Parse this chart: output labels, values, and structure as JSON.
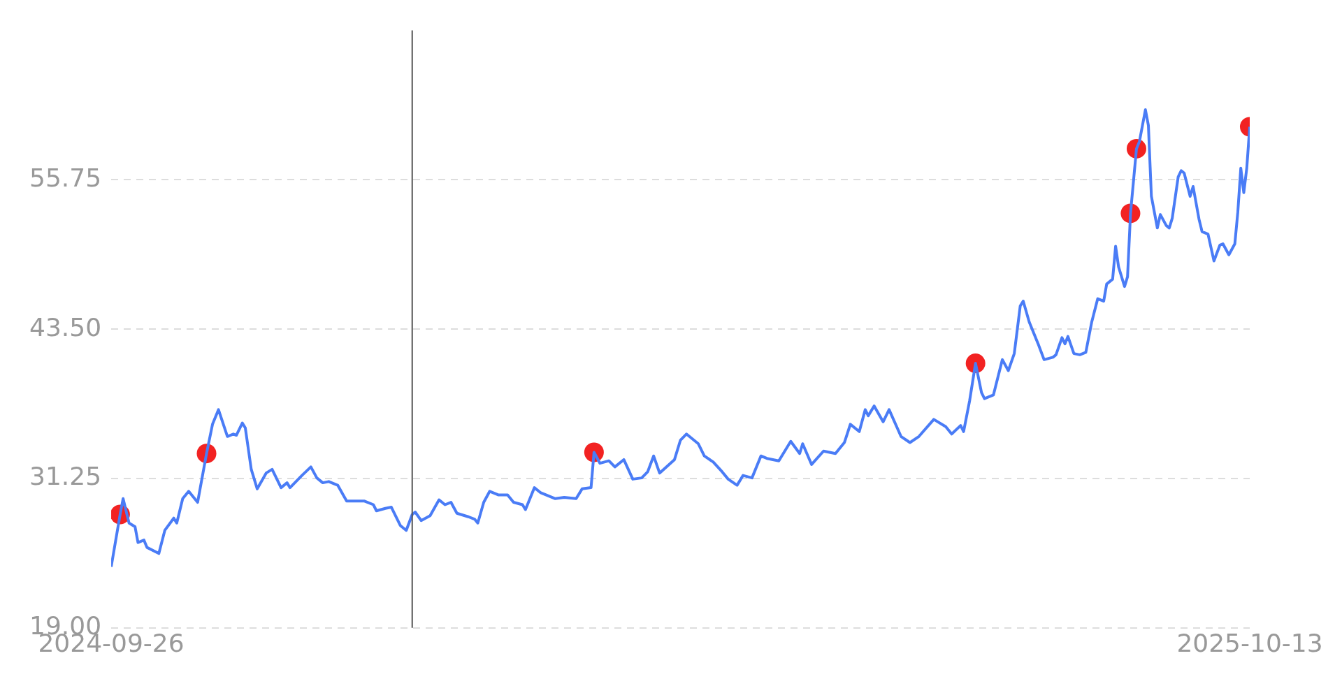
{
  "chart_data": {
    "type": "line",
    "xlim": [
      "2024-09-26",
      "2025-10-13"
    ],
    "xticks": [
      "2024-09-26",
      "2025-10-13"
    ],
    "ylim": [
      19,
      68
    ],
    "yticks": [
      {
        "value": 19,
        "label": "19.00"
      },
      31.25,
      {
        "value": 43.5,
        "label": "43.50"
      },
      55.75
    ],
    "grid": "y",
    "ref_lines": [
      {
        "axis": "x",
        "value": "2025-01-05",
        "color": "#555555"
      }
    ],
    "series": [
      {
        "color": "#4a7cf6",
        "marker": "none",
        "x": [
          "2024-09-26",
          "2024-09-29",
          "2024-09-30",
          "2024-10-02",
          "2024-10-04",
          "2024-10-05",
          "2024-10-07",
          "2024-10-08",
          "2024-10-12",
          "2024-10-14",
          "2024-10-17",
          "2024-10-18",
          "2024-10-20",
          "2024-10-22",
          "2024-10-25",
          "2024-10-28",
          "2024-10-30",
          "2024-11-01",
          "2024-11-04",
          "2024-11-06",
          "2024-11-07",
          "2024-11-09",
          "2024-11-10",
          "2024-11-12",
          "2024-11-14",
          "2024-11-17",
          "2024-11-19",
          "2024-11-22",
          "2024-11-24",
          "2024-11-25",
          "2024-11-29",
          "2024-12-02",
          "2024-12-04",
          "2024-12-06",
          "2024-12-08",
          "2024-12-11",
          "2024-12-14",
          "2024-12-20",
          "2024-12-23",
          "2024-12-24",
          "2024-12-27",
          "2024-12-29",
          "2025-01-01",
          "2025-01-03",
          "2025-01-05",
          "2025-01-06",
          "2025-01-08",
          "2025-01-11",
          "2025-01-14",
          "2025-01-16",
          "2025-01-18",
          "2025-01-20",
          "2025-01-24",
          "2025-01-26",
          "2025-01-27",
          "2025-01-29",
          "2025-01-31",
          "2025-02-03",
          "2025-02-06",
          "2025-02-08",
          "2025-02-11",
          "2025-02-12",
          "2025-02-15",
          "2025-02-17",
          "2025-02-22",
          "2025-02-25",
          "2025-03-01",
          "2025-03-03",
          "2025-03-06",
          "2025-03-07",
          "2025-03-09",
          "2025-03-12",
          "2025-03-14",
          "2025-03-17",
          "2025-03-20",
          "2025-03-23",
          "2025-03-25",
          "2025-03-27",
          "2025-03-29",
          "2025-04-03",
          "2025-04-05",
          "2025-04-07",
          "2025-04-11",
          "2025-04-13",
          "2025-04-16",
          "2025-04-19",
          "2025-04-21",
          "2025-04-24",
          "2025-04-26",
          "2025-04-29",
          "2025-05-02",
          "2025-05-04",
          "2025-05-08",
          "2025-05-12",
          "2025-05-15",
          "2025-05-16",
          "2025-05-19",
          "2025-05-23",
          "2025-05-27",
          "2025-05-30",
          "2025-06-01",
          "2025-06-04",
          "2025-06-06",
          "2025-06-07",
          "2025-06-09",
          "2025-06-12",
          "2025-06-14",
          "2025-06-18",
          "2025-06-21",
          "2025-06-24",
          "2025-06-29",
          "2025-07-03",
          "2025-07-05",
          "2025-07-08",
          "2025-07-09",
          "2025-07-11",
          "2025-07-13",
          "2025-07-15",
          "2025-07-16",
          "2025-07-19",
          "2025-07-22",
          "2025-07-24",
          "2025-07-26",
          "2025-07-28",
          "2025-07-29",
          "2025-07-31",
          "2025-08-03",
          "2025-08-05",
          "2025-08-08",
          "2025-08-09",
          "2025-08-11",
          "2025-08-12",
          "2025-08-13",
          "2025-08-15",
          "2025-08-17",
          "2025-08-19",
          "2025-08-21",
          "2025-08-23",
          "2025-08-25",
          "2025-08-26",
          "2025-08-28",
          "2025-08-29",
          "2025-08-30",
          "2025-09-01",
          "2025-09-02",
          "2025-09-03",
          "2025-09-05",
          "2025-09-06",
          "2025-09-08",
          "2025-09-09",
          "2025-09-10",
          "2025-09-12",
          "2025-09-13",
          "2025-09-15",
          "2025-09-16",
          "2025-09-17",
          "2025-09-19",
          "2025-09-20",
          "2025-09-21",
          "2025-09-23",
          "2025-09-24",
          "2025-09-26",
          "2025-09-27",
          "2025-09-29",
          "2025-10-01",
          "2025-10-03",
          "2025-10-04",
          "2025-10-06",
          "2025-10-08",
          "2025-10-09",
          "2025-10-10",
          "2025-10-11",
          "2025-10-12",
          "2025-10-13"
        ],
        "values": [
          24.0,
          28.3,
          29.6,
          27.6,
          27.3,
          26.0,
          26.2,
          25.6,
          25.1,
          27.0,
          28.0,
          27.6,
          29.6,
          30.2,
          29.3,
          33.3,
          35.7,
          36.9,
          34.7,
          34.9,
          34.8,
          35.8,
          35.4,
          32.0,
          30.4,
          31.7,
          32.0,
          30.5,
          30.9,
          30.5,
          31.5,
          32.2,
          31.3,
          30.9,
          31.0,
          30.7,
          29.4,
          29.4,
          29.1,
          28.6,
          28.8,
          28.9,
          27.4,
          27.0,
          28.3,
          28.5,
          27.8,
          28.2,
          29.5,
          29.1,
          29.3,
          28.4,
          28.1,
          27.9,
          27.6,
          29.3,
          30.2,
          29.9,
          29.9,
          29.3,
          29.1,
          28.7,
          30.5,
          30.1,
          29.6,
          29.7,
          29.6,
          30.4,
          30.5,
          33.4,
          32.5,
          32.7,
          32.2,
          32.8,
          31.2,
          31.3,
          31.8,
          33.1,
          31.7,
          32.8,
          34.4,
          34.9,
          34.1,
          33.1,
          32.6,
          31.8,
          31.2,
          30.7,
          31.5,
          31.3,
          33.1,
          32.9,
          32.7,
          34.3,
          33.3,
          34.1,
          32.4,
          33.5,
          33.3,
          34.2,
          35.7,
          35.1,
          36.9,
          36.4,
          37.2,
          35.9,
          36.9,
          34.7,
          34.2,
          34.7,
          36.1,
          35.5,
          34.9,
          35.6,
          35.1,
          37.6,
          40.7,
          38.3,
          37.8,
          38.1,
          41.0,
          40.1,
          41.5,
          45.4,
          45.8,
          44.1,
          42.3,
          41.0,
          41.2,
          41.4,
          42.8,
          42.3,
          42.9,
          41.5,
          41.4,
          41.6,
          44.1,
          46.0,
          45.8,
          47.2,
          47.6,
          50.3,
          48.6,
          47.0,
          47.8,
          53.0,
          58.3,
          58.9,
          61.5,
          60.2,
          54.4,
          51.8,
          52.9,
          52.0,
          51.8,
          52.6,
          56.0,
          56.5,
          56.3,
          54.4,
          55.2,
          52.5,
          51.5,
          51.3,
          49.1,
          50.4,
          50.5,
          49.6,
          50.5,
          53.1,
          56.7,
          54.7,
          56.7,
          60.1
        ]
      },
      {
        "type": "scatter",
        "color": "#f22222",
        "marker": "circle",
        "x": [
          "2024-09-29",
          "2024-10-28",
          "2025-03-07",
          "2025-07-13",
          "2025-09-03",
          "2025-09-05",
          "2025-10-13"
        ],
        "values": [
          28.3,
          33.3,
          33.4,
          40.7,
          53.0,
          58.3,
          60.1
        ]
      }
    ]
  }
}
